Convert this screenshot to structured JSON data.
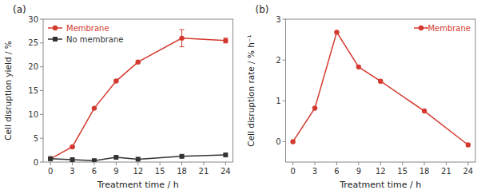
{
  "chart_data": [
    {
      "type": "line",
      "title": "(a)",
      "x_label": "Treatment time / h",
      "y_label": "Cell disruption yield / %",
      "x": [
        0,
        3,
        6,
        9,
        12,
        18,
        24
      ],
      "series": [
        {
          "name": "Membrane",
          "color": "#d43a2f",
          "marker": "circle",
          "line_style": "solid",
          "values": [
            0.7,
            3.2,
            11.3,
            17.0,
            21.0,
            26.0,
            25.5
          ],
          "errors": [
            0,
            0,
            0,
            0,
            0,
            1.8,
            0.5
          ]
        },
        {
          "name": "No membrane",
          "color": "#333333",
          "marker": "square",
          "line_style": "solid",
          "values": [
            0.7,
            0.5,
            0.3,
            1.0,
            0.6,
            1.2,
            1.5
          ]
        }
      ],
      "xlim": [
        -1,
        25
      ],
      "xticks": [
        0,
        3,
        6,
        9,
        12,
        15,
        18,
        21,
        24
      ],
      "ylim": [
        0,
        30
      ],
      "yticks": [
        0,
        5,
        10,
        15,
        20,
        25,
        30
      ],
      "legend": "top-left",
      "grid": false
    },
    {
      "type": "line",
      "title": "(b)",
      "x_label": "Treatment time / h",
      "y_label": "Cell disruption rate / % h⁻¹",
      "x": [
        0,
        3,
        6,
        9,
        12,
        18,
        24
      ],
      "series": [
        {
          "name": "Membrane",
          "color": "#d43a2f",
          "marker": "circle",
          "line_style": "solid",
          "values": [
            0.0,
            0.82,
            2.68,
            1.83,
            1.48,
            0.75,
            -0.08
          ]
        }
      ],
      "xlim": [
        -1,
        25
      ],
      "xticks": [
        0,
        3,
        6,
        9,
        12,
        15,
        18,
        21,
        24
      ],
      "ylim": [
        -0.5,
        3.0
      ],
      "yticks": [
        0,
        1,
        2,
        3
      ],
      "legend": "top-right",
      "grid": false
    }
  ]
}
